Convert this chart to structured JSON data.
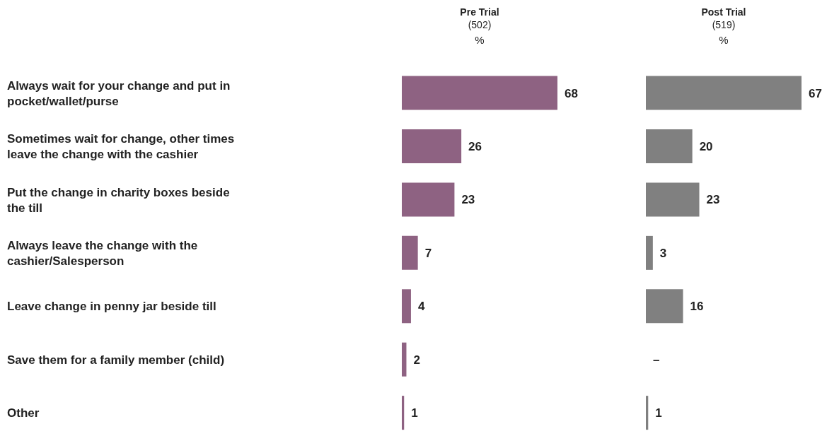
{
  "chart_data": [
    {
      "type": "bar",
      "orientation": "horizontal",
      "title": "Pre Trial",
      "subtitle": "(502)",
      "annotations": [
        "%"
      ],
      "categories": [
        "Always wait for your change and put in pocket/wallet/purse",
        "Sometimes wait for change, other times leave the change with the cashier",
        "Put the change in charity boxes  beside the till",
        "Always leave the change with the cashier/Salesperson",
        "Leave change in penny jar beside till",
        "Save them for a family member (child)",
        "Other"
      ],
      "values": [
        68,
        26,
        23,
        7,
        4,
        2,
        1
      ],
      "color": "#8e6282",
      "data_labels": true,
      "tick_labels": "y",
      "grid": false,
      "legend": false
    },
    {
      "type": "bar",
      "orientation": "horizontal",
      "title": "Post Trial",
      "subtitle": "(519)",
      "annotations": [
        "%"
      ],
      "categories": [
        null,
        null,
        null,
        null,
        null,
        null,
        null
      ],
      "values": [
        67,
        20,
        23,
        3,
        16,
        null,
        1
      ],
      "value_labels": [
        "67",
        "20",
        "23",
        "3",
        "16",
        "–",
        "1"
      ],
      "color": "#808080",
      "tick_labels": false,
      "grid": false,
      "legend": false
    }
  ]
}
